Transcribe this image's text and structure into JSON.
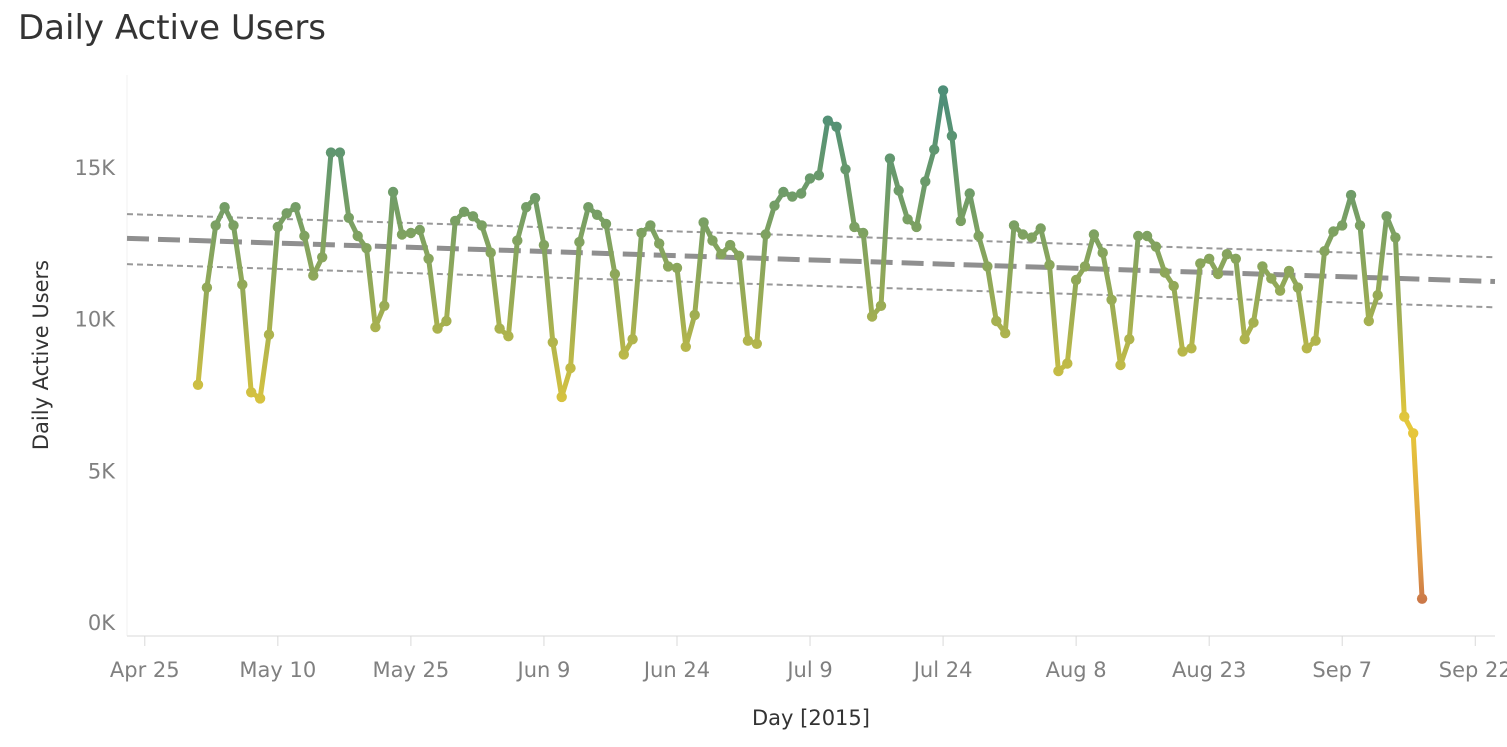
{
  "chart_data": {
    "type": "line",
    "title": "Daily Active Users",
    "xlabel": "Day [2015]",
    "ylabel": "Daily Active Users",
    "x_start": "2015-05-01",
    "x_end": "2015-09-19",
    "x_ticks": [
      "Apr 25",
      "May 10",
      "May 25",
      "Jun 9",
      "Jun 24",
      "Jul 9",
      "Jul 24",
      "Aug 8",
      "Aug 23",
      "Sep 7",
      "Sep 22"
    ],
    "y_ticks": [
      "0K",
      "5K",
      "10K",
      "15K"
    ],
    "ylim": [
      0,
      17500
    ],
    "grid": false,
    "color_scale": {
      "low": "#c0674a",
      "mid": "#e6c83a",
      "high": "#4e8f78"
    },
    "trend_line": {
      "start": 12600,
      "end": 11300,
      "upper_start": 13400,
      "upper_end": 12100,
      "lower_start": 11750,
      "lower_end": 10450
    },
    "series": [
      {
        "values": [
          7850,
          11050,
          13100,
          13700,
          13100,
          11150,
          7600,
          7400,
          9500,
          13050,
          13500,
          13700,
          12750,
          11450,
          12050,
          15500,
          15500,
          13350,
          12750,
          12350,
          9750,
          10450,
          14200,
          12800,
          12850,
          12950,
          12000,
          9700,
          9950,
          13250,
          13550,
          13400,
          13100,
          12200,
          9700,
          9450,
          12600,
          13700,
          14000,
          12450,
          9250,
          7450,
          8400,
          12550,
          13700,
          13450,
          13150,
          11500,
          8850,
          9350,
          12850,
          13100,
          12500,
          11750,
          11700,
          9100,
          10150,
          13200,
          12600,
          12150,
          12450,
          12100,
          9300,
          9200,
          12800,
          13750,
          14200,
          14050,
          14150,
          14650,
          14750,
          16550,
          16350,
          14950,
          13050,
          12850,
          10100,
          10450,
          15300,
          14250,
          13300,
          13050,
          14550,
          15600,
          17550,
          16050,
          13250,
          14150,
          12750,
          11750,
          9950,
          9550,
          13100,
          12800,
          12700,
          13000,
          11800,
          8300,
          8550,
          11300,
          11750,
          12800,
          12200,
          10650,
          8500,
          9350,
          12750,
          12750,
          12400,
          11550,
          11100,
          8950,
          9050,
          11850,
          12000,
          11500,
          12150,
          12000,
          9350,
          9900,
          11750,
          11350,
          10950,
          11600,
          11050,
          9050,
          9300,
          12250,
          12900,
          13100,
          14100,
          13100,
          9950,
          10800,
          13400,
          12700,
          6800,
          6250,
          800
        ]
      }
    ]
  }
}
